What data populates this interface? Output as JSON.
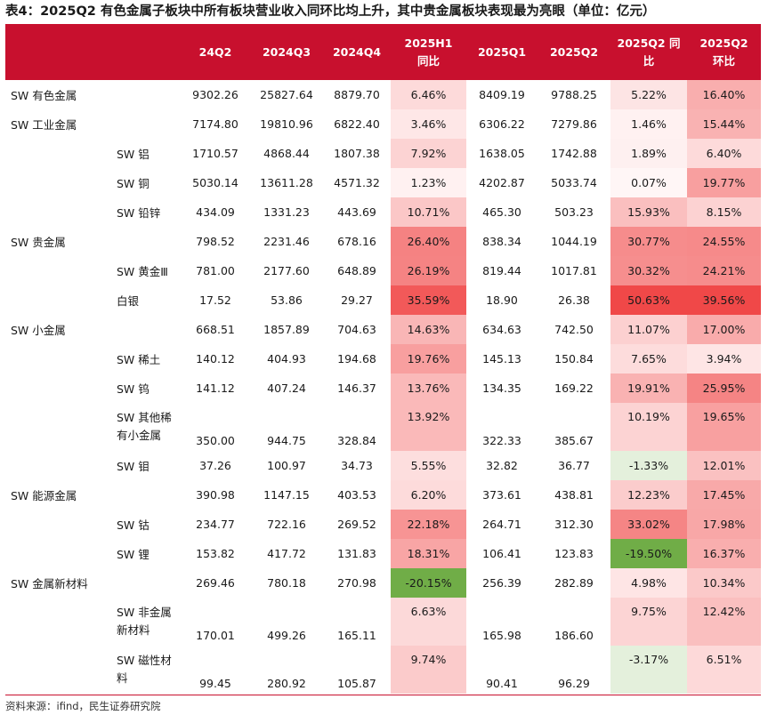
{
  "title": "表4：2025Q2 有色金属子板块中所有板块营业收入同环比均上升，其中贵金属板块表现最为亮眼（单位：亿元）",
  "source": "资料来源：ifind，民生证券研究院",
  "colors": {
    "header_bg": "#c8102e",
    "header_text": "#ffffff",
    "positive_scale": [
      "#fde9e9",
      "#f04a4a"
    ],
    "negative_fill": "#70ad47",
    "negative_light": "#e2efda"
  },
  "headers": [
    "",
    "",
    "24Q2",
    "2024Q3",
    "2024Q4",
    "2025H1\n同比",
    "2025Q1",
    "2025Q2",
    "2025Q2 同\n比",
    "2025Q2\n环比"
  ],
  "rows": [
    {
      "name": "SW 有色金属",
      "sub": "",
      "v": [
        "9302.26",
        "25827.64",
        "8879.70",
        "6.46%",
        "8409.19",
        "9788.25",
        "5.22%",
        "16.40%"
      ],
      "p": [
        6.46,
        5.22,
        16.4
      ]
    },
    {
      "name": "SW 工业金属",
      "sub": "",
      "v": [
        "7174.80",
        "19810.96",
        "6822.40",
        "3.46%",
        "6306.22",
        "7279.86",
        "1.46%",
        "15.44%"
      ],
      "p": [
        3.46,
        1.46,
        15.44
      ]
    },
    {
      "name": "",
      "sub": "SW 铝",
      "v": [
        "1710.57",
        "4868.44",
        "1807.38",
        "7.92%",
        "1638.05",
        "1742.88",
        "1.89%",
        "6.40%"
      ],
      "p": [
        7.92,
        1.89,
        6.4
      ]
    },
    {
      "name": "",
      "sub": "SW 铜",
      "v": [
        "5030.14",
        "13611.28",
        "4571.32",
        "1.23%",
        "4202.87",
        "5033.74",
        "0.07%",
        "19.77%"
      ],
      "p": [
        1.23,
        0.07,
        19.77
      ]
    },
    {
      "name": "",
      "sub": "SW 铅锌",
      "v": [
        "434.09",
        "1331.23",
        "443.69",
        "10.71%",
        "465.30",
        "503.23",
        "15.93%",
        "8.15%"
      ],
      "p": [
        10.71,
        15.93,
        8.15
      ]
    },
    {
      "name": "SW 贵金属",
      "sub": "",
      "v": [
        "798.52",
        "2231.46",
        "678.16",
        "26.40%",
        "838.34",
        "1044.19",
        "30.77%",
        "24.55%"
      ],
      "p": [
        26.4,
        30.77,
        24.55
      ]
    },
    {
      "name": "",
      "sub": "SW 黄金Ⅲ",
      "v": [
        "781.00",
        "2177.60",
        "648.89",
        "26.19%",
        "819.44",
        "1017.81",
        "30.32%",
        "24.21%"
      ],
      "p": [
        26.19,
        30.32,
        24.21
      ]
    },
    {
      "name": "",
      "sub": "白银",
      "v": [
        "17.52",
        "53.86",
        "29.27",
        "35.59%",
        "18.90",
        "26.38",
        "50.63%",
        "39.56%"
      ],
      "p": [
        35.59,
        50.63,
        39.56
      ]
    },
    {
      "name": "SW 小金属",
      "sub": "",
      "v": [
        "668.51",
        "1857.89",
        "704.63",
        "14.63%",
        "634.63",
        "742.50",
        "11.07%",
        "17.00%"
      ],
      "p": [
        14.63,
        11.07,
        17.0
      ]
    },
    {
      "name": "",
      "sub": "SW 稀土",
      "v": [
        "140.12",
        "404.93",
        "194.68",
        "19.76%",
        "145.13",
        "150.84",
        "7.65%",
        "3.94%"
      ],
      "p": [
        19.76,
        7.65,
        3.94
      ]
    },
    {
      "name": "",
      "sub": "SW 钨",
      "v": [
        "141.12",
        "407.24",
        "146.37",
        "13.76%",
        "134.35",
        "169.22",
        "19.91%",
        "25.95%"
      ],
      "p": [
        13.76,
        19.91,
        25.95
      ]
    },
    {
      "name": "",
      "sub": "SW 其他稀\n有小金属",
      "tall": true,
      "v": [
        "350.00",
        "944.75",
        "328.84",
        "13.92%",
        "322.33",
        "385.67",
        "10.19%",
        "19.65%"
      ],
      "p": [
        13.92,
        10.19,
        19.65
      ]
    },
    {
      "name": "",
      "sub": "SW 钼",
      "v": [
        "37.26",
        "100.97",
        "34.73",
        "5.55%",
        "32.82",
        "36.77",
        "-1.33%",
        "12.01%"
      ],
      "p": [
        5.55,
        -1.33,
        12.01
      ]
    },
    {
      "name": "SW 能源金属",
      "sub": "",
      "v": [
        "390.98",
        "1147.15",
        "403.53",
        "6.20%",
        "373.61",
        "438.81",
        "12.23%",
        "17.45%"
      ],
      "p": [
        6.2,
        12.23,
        17.45
      ]
    },
    {
      "name": "",
      "sub": "SW 钴",
      "v": [
        "234.77",
        "722.16",
        "269.52",
        "22.18%",
        "264.71",
        "312.30",
        "33.02%",
        "17.98%"
      ],
      "p": [
        22.18,
        33.02,
        17.98
      ]
    },
    {
      "name": "",
      "sub": "SW 锂",
      "v": [
        "153.82",
        "417.72",
        "131.83",
        "18.31%",
        "106.41",
        "123.83",
        "-19.50%",
        "16.37%"
      ],
      "p": [
        18.31,
        -19.5,
        16.37
      ]
    },
    {
      "name": "SW 金属新材料",
      "sub": "",
      "v": [
        "269.46",
        "780.18",
        "270.98",
        "-20.15%",
        "256.39",
        "282.89",
        "4.98%",
        "10.34%"
      ],
      "p": [
        -20.15,
        4.98,
        10.34
      ]
    },
    {
      "name": "",
      "sub": "SW 非金属\n新材料",
      "tall": true,
      "v": [
        "170.01",
        "499.26",
        "165.11",
        "6.63%",
        "165.98",
        "186.60",
        "9.75%",
        "12.42%"
      ],
      "p": [
        6.63,
        9.75,
        12.42
      ]
    },
    {
      "name": "",
      "sub": "SW 磁性材\n料",
      "tall": true,
      "v": [
        "99.45",
        "280.92",
        "105.87",
        "9.74%",
        "90.41",
        "96.29",
        "-3.17%",
        "6.51%"
      ],
      "p": [
        9.74,
        -3.17,
        6.51
      ]
    }
  ]
}
